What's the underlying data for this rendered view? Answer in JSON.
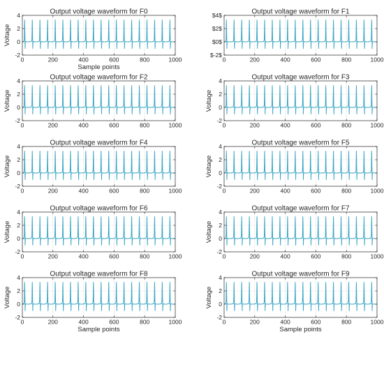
{
  "colors": {
    "trace": "#3aa6c4",
    "axis": "#262626",
    "grid": "#e3e3e3"
  },
  "chart_data": [
    {
      "type": "line",
      "title": "Output voltage waveform for F0",
      "xlabel": "Sample points",
      "ylabel": "Voltage",
      "xlim": [
        0,
        1000
      ],
      "ylim": [
        -2,
        4
      ],
      "xticks": [
        "0",
        "200",
        "400",
        "600",
        "800",
        "1000"
      ],
      "yticks": [
        "-2",
        "0",
        "2",
        "4"
      ],
      "grid": true,
      "period_samples": 50,
      "peak_value": 3.3,
      "trough_value": -1.0,
      "first_peak_x": 15
    },
    {
      "type": "line",
      "title": "Output voltage waveform for F1",
      "xlabel": "",
      "ylabel": "",
      "xlim": [
        0,
        1000
      ],
      "ylim": [
        -2,
        4
      ],
      "xticks": [
        "0",
        "200",
        "400",
        "600",
        "800",
        "1000"
      ],
      "yticks": [
        "$-2$",
        "$0$",
        "$2$",
        "$4$"
      ],
      "grid": true,
      "period_samples": 50,
      "peak_value": 3.3,
      "trough_value": -1.0,
      "first_peak_x": 15
    },
    {
      "type": "line",
      "title": "Output voltage waveform for F2",
      "xlabel": "",
      "ylabel": "Voltage",
      "xlim": [
        0,
        1000
      ],
      "ylim": [
        -2,
        4
      ],
      "xticks": [
        "0",
        "200",
        "400",
        "600",
        "800",
        "1000"
      ],
      "yticks": [
        "-2",
        "0",
        "2",
        "4"
      ],
      "grid": true,
      "period_samples": 50,
      "peak_value": 3.3,
      "trough_value": -1.0,
      "first_peak_x": 15
    },
    {
      "type": "line",
      "title": "Output voltage waveform for F3",
      "xlabel": "",
      "ylabel": "Voltage",
      "xlim": [
        0,
        1000
      ],
      "ylim": [
        -2,
        4
      ],
      "xticks": [
        "0",
        "200",
        "400",
        "600",
        "800",
        "1000"
      ],
      "yticks": [
        "-2",
        "0",
        "2",
        "4"
      ],
      "grid": true,
      "period_samples": 50,
      "peak_value": 3.3,
      "trough_value": -1.0,
      "first_peak_x": 15
    },
    {
      "type": "line",
      "title": "Output voltage waveform for F4",
      "xlabel": "",
      "ylabel": "Voltage",
      "xlim": [
        0,
        1000
      ],
      "ylim": [
        -2,
        4
      ],
      "xticks": [
        "0",
        "200",
        "400",
        "600",
        "800",
        "1000"
      ],
      "yticks": [
        "-2",
        "0",
        "2",
        "4"
      ],
      "grid": true,
      "period_samples": 50,
      "peak_value": 3.3,
      "trough_value": -1.0,
      "first_peak_x": 15
    },
    {
      "type": "line",
      "title": "Output voltage waveform for F5",
      "xlabel": "",
      "ylabel": "Voltage",
      "xlim": [
        0,
        1000
      ],
      "ylim": [
        -2,
        4
      ],
      "xticks": [
        "0",
        "200",
        "400",
        "600",
        "800",
        "1000"
      ],
      "yticks": [
        "-2",
        "0",
        "2",
        "4"
      ],
      "grid": true,
      "period_samples": 50,
      "peak_value": 3.3,
      "trough_value": -1.0,
      "first_peak_x": 15
    },
    {
      "type": "line",
      "title": "Output voltage waveform for F6",
      "xlabel": "",
      "ylabel": "Voltage",
      "xlim": [
        0,
        1000
      ],
      "ylim": [
        -2,
        4
      ],
      "xticks": [
        "0",
        "200",
        "400",
        "600",
        "800",
        "1000"
      ],
      "yticks": [
        "-2",
        "0",
        "2",
        "4"
      ],
      "grid": true,
      "period_samples": 50,
      "peak_value": 3.3,
      "trough_value": -1.0,
      "first_peak_x": 15
    },
    {
      "type": "line",
      "title": "Output voltage waveform for F7",
      "xlabel": "",
      "ylabel": "Voltage",
      "xlim": [
        0,
        1000
      ],
      "ylim": [
        -2,
        4
      ],
      "xticks": [
        "0",
        "200",
        "400",
        "600",
        "800",
        "1000"
      ],
      "yticks": [
        "-2",
        "0",
        "2",
        "4"
      ],
      "grid": true,
      "period_samples": 50,
      "peak_value": 3.3,
      "trough_value": -1.0,
      "first_peak_x": 15
    },
    {
      "type": "line",
      "title": "Output voltage waveform for F8",
      "xlabel": "Sample points",
      "ylabel": "Voltage",
      "xlim": [
        0,
        1000
      ],
      "ylim": [
        -2,
        4
      ],
      "xticks": [
        "0",
        "200",
        "400",
        "600",
        "800",
        "1000"
      ],
      "yticks": [
        "-2",
        "0",
        "2",
        "4"
      ],
      "grid": true,
      "period_samples": 50,
      "peak_value": 3.3,
      "trough_value": -1.0,
      "first_peak_x": 15
    },
    {
      "type": "line",
      "title": "Output voltage waveform for F9",
      "xlabel": "Sample points",
      "ylabel": "Voltage",
      "xlim": [
        0,
        1000
      ],
      "ylim": [
        -2,
        4
      ],
      "xticks": [
        "0",
        "200",
        "400",
        "600",
        "800",
        "1000"
      ],
      "yticks": [
        "-2",
        "0",
        "2",
        "4"
      ],
      "grid": true,
      "period_samples": 50,
      "peak_value": 3.3,
      "trough_value": -1.0,
      "first_peak_x": 15
    }
  ]
}
